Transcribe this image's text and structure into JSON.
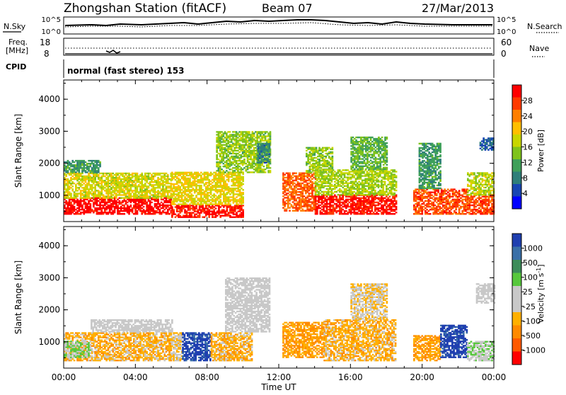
{
  "header": {
    "station": "Zhongshan Station (fitACF)",
    "beam": "Beam 07",
    "date": "27/Mar/2013"
  },
  "top_panels": {
    "nsky_label": "N.Sky",
    "nsky_ticks": [
      "10^5",
      "10^0"
    ],
    "nsearch_label": "N.Search",
    "nsearch_ticks": [
      "10^5",
      "10^0"
    ],
    "freq_label_1": "Freq.",
    "freq_label_2": "[MHz]",
    "freq_ticks": [
      "18",
      "8"
    ],
    "nave_label": "Nave",
    "nave_ticks": [
      "60",
      "0"
    ],
    "cpid_label": "CPID",
    "cpid_text": "normal (fast stereo) 153"
  },
  "x_axis": {
    "label": "Time UT",
    "ticks": [
      "00:00",
      "04:00",
      "08:00",
      "12:00",
      "16:00",
      "20:00",
      "00:00"
    ]
  },
  "y_axis": {
    "label": "Slant Range [km]",
    "ticks": [
      "4000",
      "3000",
      "2000",
      "1000"
    ]
  },
  "colorbars": {
    "power": {
      "label": "Power [dB]",
      "ticks": [
        "28",
        "24",
        "20",
        "16",
        "12",
        "8",
        "4"
      ],
      "colors": [
        "#ff0000",
        "#ff3a00",
        "#ff7f00",
        "#ffbf00",
        "#c8d600",
        "#7fc31c",
        "#3fa05a",
        "#2f7f7a",
        "#1846b3",
        "#0000ff"
      ]
    },
    "velocity": {
      "label": "Velocity [m s",
      "label_sup": "-1",
      "label_end": "]",
      "ticks": [
        "1000",
        "500",
        "100",
        "25",
        "-25",
        "-100",
        "-500",
        "-1000"
      ],
      "colors": [
        "#1f3fb0",
        "#3a70a8",
        "#3d8c5a",
        "#57c83c",
        "#c8c8c8",
        "#c8c8c8",
        "#ffb000",
        "#ff8a00",
        "#ff5a00",
        "#ff0000"
      ]
    }
  },
  "chart_data": [
    {
      "type": "heatmap",
      "title": "Power",
      "xlabel": "Time UT",
      "ylabel": "Slant Range [km]",
      "xlim": [
        "00:00",
        "24:00"
      ],
      "ylim": [
        180,
        4600
      ],
      "colorbar_range": [
        0,
        30
      ],
      "colorbar_unit": "dB",
      "regions": [
        {
          "t": [
            0,
            6.0
          ],
          "range": [
            400,
            900
          ],
          "value": 29
        },
        {
          "t": [
            0,
            6.0
          ],
          "range": [
            900,
            1700
          ],
          "value": 17
        },
        {
          "t": [
            0,
            2.0
          ],
          "range": [
            1700,
            2100
          ],
          "value": 10
        },
        {
          "t": [
            6.0,
            10.0
          ],
          "range": [
            300,
            700
          ],
          "value": 28
        },
        {
          "t": [
            6.0,
            10.0
          ],
          "range": [
            700,
            1700
          ],
          "value": 18
        },
        {
          "t": [
            8.5,
            11.5
          ],
          "range": [
            1700,
            3000
          ],
          "value": 14
        },
        {
          "t": [
            10.8,
            11.5
          ],
          "range": [
            2000,
            2600
          ],
          "value": 8
        },
        {
          "t": [
            12.2,
            14.0
          ],
          "range": [
            500,
            1700
          ],
          "value": 24
        },
        {
          "t": [
            13.5,
            15.0
          ],
          "range": [
            1700,
            2500
          ],
          "value": 14
        },
        {
          "t": [
            14.0,
            18.5
          ],
          "range": [
            400,
            1000
          ],
          "value": 28
        },
        {
          "t": [
            14.0,
            18.5
          ],
          "range": [
            1000,
            1800
          ],
          "value": 15
        },
        {
          "t": [
            16.0,
            18.0
          ],
          "range": [
            1800,
            2800
          ],
          "value": 12
        },
        {
          "t": [
            19.5,
            22.5
          ],
          "range": [
            400,
            1200
          ],
          "value": 25
        },
        {
          "t": [
            19.8,
            21.0
          ],
          "range": [
            1200,
            2600
          ],
          "value": 10
        },
        {
          "t": [
            22.5,
            24.0
          ],
          "range": [
            400,
            1000
          ],
          "value": 25
        },
        {
          "t": [
            22.5,
            24.0
          ],
          "range": [
            1000,
            1700
          ],
          "value": 16
        },
        {
          "t": [
            23.2,
            24.0
          ],
          "range": [
            2400,
            2800
          ],
          "value": 6
        }
      ]
    },
    {
      "type": "heatmap",
      "title": "Velocity",
      "xlabel": "Time UT",
      "ylabel": "Slant Range [km]",
      "xlim": [
        "00:00",
        "24:00"
      ],
      "ylim": [
        180,
        4600
      ],
      "colorbar_range": [
        -1000,
        1000
      ],
      "colorbar_unit": "m s-1",
      "regions": [
        {
          "t": [
            0,
            6.0
          ],
          "range": [
            400,
            1300
          ],
          "value": -300
        },
        {
          "t": [
            0,
            1.5
          ],
          "range": [
            500,
            1000
          ],
          "value": 200
        },
        {
          "t": [
            1.5,
            6.0
          ],
          "range": [
            1300,
            1700
          ],
          "value": 0
        },
        {
          "t": [
            6.0,
            6.6
          ],
          "range": [
            400,
            1300
          ],
          "value": -200
        },
        {
          "t": [
            6.6,
            8.2
          ],
          "range": [
            400,
            1300
          ],
          "value": 900
        },
        {
          "t": [
            8.2,
            10.5
          ],
          "range": [
            400,
            1300
          ],
          "value": -300
        },
        {
          "t": [
            9.0,
            11.5
          ],
          "range": [
            1300,
            3000
          ],
          "value": 0
        },
        {
          "t": [
            12.2,
            14.5
          ],
          "range": [
            500,
            1600
          ],
          "value": -400
        },
        {
          "t": [
            14.5,
            18.5
          ],
          "range": [
            400,
            1700
          ],
          "value": -300
        },
        {
          "t": [
            16.0,
            18.0
          ],
          "range": [
            1700,
            2800
          ],
          "value": -150
        },
        {
          "t": [
            19.5,
            21.0
          ],
          "range": [
            400,
            1200
          ],
          "value": -400
        },
        {
          "t": [
            21.0,
            22.5
          ],
          "range": [
            500,
            1500
          ],
          "value": 900
        },
        {
          "t": [
            22.5,
            24.0
          ],
          "range": [
            400,
            1000
          ],
          "value": 150
        },
        {
          "t": [
            23.0,
            24.0
          ],
          "range": [
            2200,
            2800
          ],
          "value": 0
        }
      ]
    }
  ]
}
